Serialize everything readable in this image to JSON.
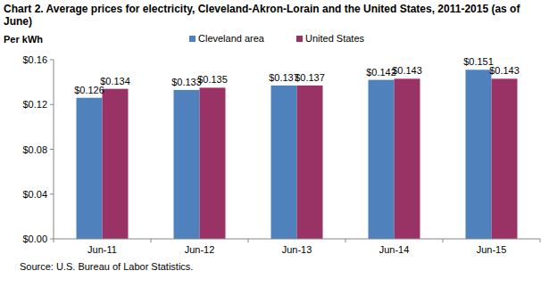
{
  "chart_data": {
    "type": "bar",
    "title": "Chart 2. Average prices for electricity, Cleveland-Akron-Lorain and the United States, 2011-2015 (as of June)",
    "y_label": "Per kWh",
    "source": "Source: U.S. Bureau of Labor Statistics.",
    "categories": [
      "Jun-11",
      "Jun-12",
      "Jun-13",
      "Jun-14",
      "Jun-15"
    ],
    "series": [
      {
        "name": "Cleveland area",
        "color": "#4f81bd",
        "values": [
          0.126,
          0.133,
          0.137,
          0.142,
          0.151
        ],
        "value_labels": [
          "$0.126",
          "$0.133",
          "$0.137",
          "$0.142",
          "$0.151"
        ]
      },
      {
        "name": "United States",
        "color": "#993366",
        "values": [
          0.134,
          0.135,
          0.137,
          0.143,
          0.143
        ],
        "value_labels": [
          "$0.134",
          "$0.135",
          "$0.137",
          "$0.143",
          "$0.143"
        ]
      }
    ],
    "ylim": [
      0,
      0.16
    ],
    "yticks": [
      {
        "value": 0,
        "label": "$0.00"
      },
      {
        "value": 0.04,
        "label": "$0.04"
      },
      {
        "value": 0.08,
        "label": "$0.08"
      },
      {
        "value": 0.12,
        "label": "$0.12"
      },
      {
        "value": 0.16,
        "label": "$0.16"
      }
    ],
    "grid": false,
    "legend": "top",
    "data_labels": true
  }
}
